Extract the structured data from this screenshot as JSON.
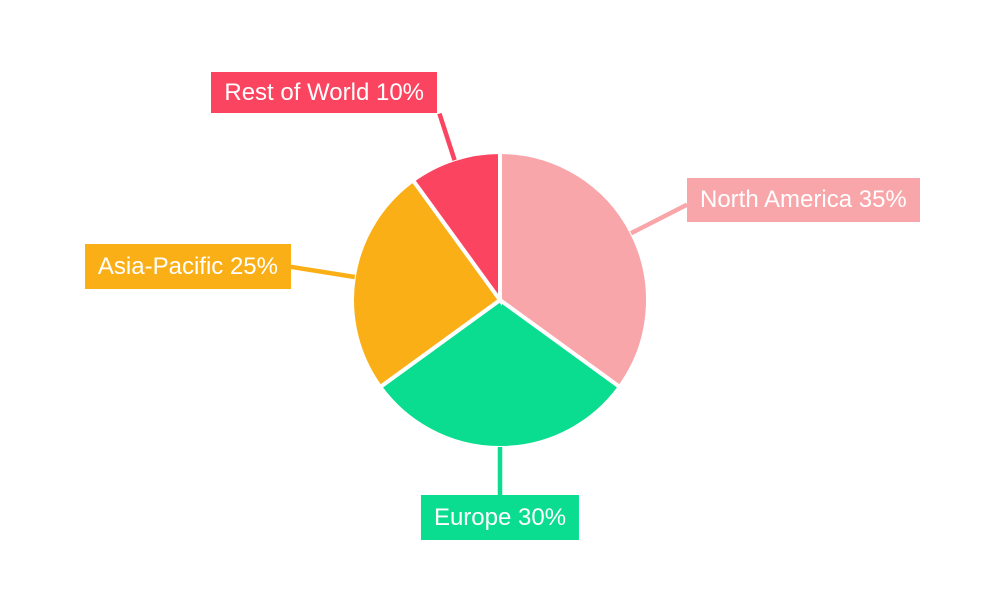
{
  "chart_data": {
    "type": "pie",
    "title": "",
    "slices": [
      {
        "label": "North America",
        "value": 35,
        "display": "North America 35%",
        "color": "#F8A6A9"
      },
      {
        "label": "Europe",
        "value": 30,
        "display": "Europe 30%",
        "color": "#0ADD90"
      },
      {
        "label": "Asia-Pacific",
        "value": 25,
        "display": "Asia-Pacific 25%",
        "color": "#FBAF17"
      },
      {
        "label": "Rest of World",
        "value": 10,
        "display": "Rest of World 10%",
        "color": "#FB4560"
      }
    ],
    "start_angle_deg": 0,
    "direction": "clockwise",
    "slice_gap_color": "#FFFFFF",
    "label_text_color": "#FFFFFF",
    "background": "#FFFFFF",
    "legend": "none",
    "labels_style": "callout-boxes-with-leader-lines"
  }
}
